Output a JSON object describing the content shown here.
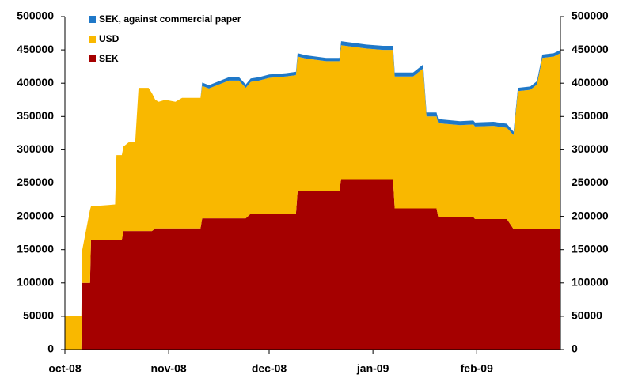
{
  "chart_data": {
    "type": "stacked-area",
    "x": [
      0,
      4.9,
      5.2,
      7.5,
      7.8,
      13,
      15,
      15.4,
      17,
      17.5,
      19,
      21,
      22,
      25,
      26,
      27,
      28,
      30,
      33,
      35,
      40.5,
      41,
      43,
      49,
      52,
      54,
      55.5,
      58,
      61,
      66,
      69,
      69.5,
      72,
      78,
      82,
      82.5,
      90,
      95,
      98,
      98.5,
      104,
      107,
      108,
      111,
      111.5,
      118,
      122,
      122.5,
      128,
      132,
      134,
      135.3,
      139,
      141,
      142.6,
      146,
      148
    ],
    "xlim": [
      0,
      148
    ],
    "xticks": [
      {
        "value": 0,
        "label": "oct-08"
      },
      {
        "value": 31,
        "label": "nov-08"
      },
      {
        "value": 61,
        "label": "dec-08"
      },
      {
        "value": 92,
        "label": "jan-09"
      },
      {
        "value": 123,
        "label": "feb-09"
      }
    ],
    "ylim": [
      0,
      500000
    ],
    "yticks": [
      0,
      50000,
      100000,
      150000,
      200000,
      250000,
      300000,
      350000,
      400000,
      450000,
      500000
    ],
    "y2lim": [
      0,
      500000
    ],
    "y2ticks": [
      0,
      50000,
      100000,
      150000,
      200000,
      250000,
      300000,
      350000,
      400000,
      450000,
      500000
    ],
    "series": [
      {
        "name": "SEK",
        "color": "#a50000",
        "values": [
          0,
          0,
          100000,
          100000,
          165000,
          165000,
          165000,
          165000,
          165000,
          178000,
          178000,
          178000,
          178000,
          178000,
          178000,
          182000,
          182000,
          182000,
          182000,
          182000,
          182000,
          197000,
          197000,
          197000,
          197000,
          197000,
          204000,
          204000,
          204000,
          204000,
          204000,
          238000,
          238000,
          238000,
          238000,
          256000,
          256000,
          256000,
          256000,
          212000,
          212000,
          212000,
          212000,
          212000,
          199000,
          199000,
          199000,
          196000,
          196000,
          196000,
          181000,
          181000,
          181000,
          181000,
          181000,
          181000,
          181000
        ]
      },
      {
        "name": "USD",
        "color": "#f9b800",
        "values": [
          50000,
          50000,
          50000,
          110000,
          50000,
          52000,
          53000,
          127000,
          127000,
          127000,
          133000,
          134000,
          215000,
          215000,
          207000,
          193000,
          190000,
          193000,
          190000,
          196000,
          196000,
          199000,
          195000,
          207000,
          207000,
          196000,
          198000,
          200000,
          204000,
          206000,
          208000,
          202000,
          199000,
          195000,
          195000,
          201000,
          196000,
          194000,
          194000,
          198000,
          198000,
          210000,
          138000,
          138000,
          141000,
          138000,
          139000,
          139000,
          140000,
          137000,
          141000,
          207000,
          209000,
          217000,
          257000,
          259000,
          264000
        ]
      },
      {
        "name": "SEK, against commercial paper",
        "color": "#1f78c8",
        "values": [
          0,
          0,
          0,
          0,
          0,
          0,
          0,
          0,
          0,
          0,
          0,
          0,
          0,
          0,
          0,
          0,
          0,
          0,
          0,
          0,
          0,
          5000,
          5000,
          5000,
          5000,
          5000,
          5000,
          5000,
          5000,
          5000,
          5000,
          5000,
          5000,
          5000,
          5000,
          6000,
          6000,
          6000,
          6000,
          6000,
          6000,
          6000,
          6000,
          6000,
          6000,
          6000,
          6000,
          6000,
          6000,
          6000,
          5000,
          5000,
          5000,
          5000,
          5000,
          5000,
          5000
        ]
      }
    ]
  }
}
